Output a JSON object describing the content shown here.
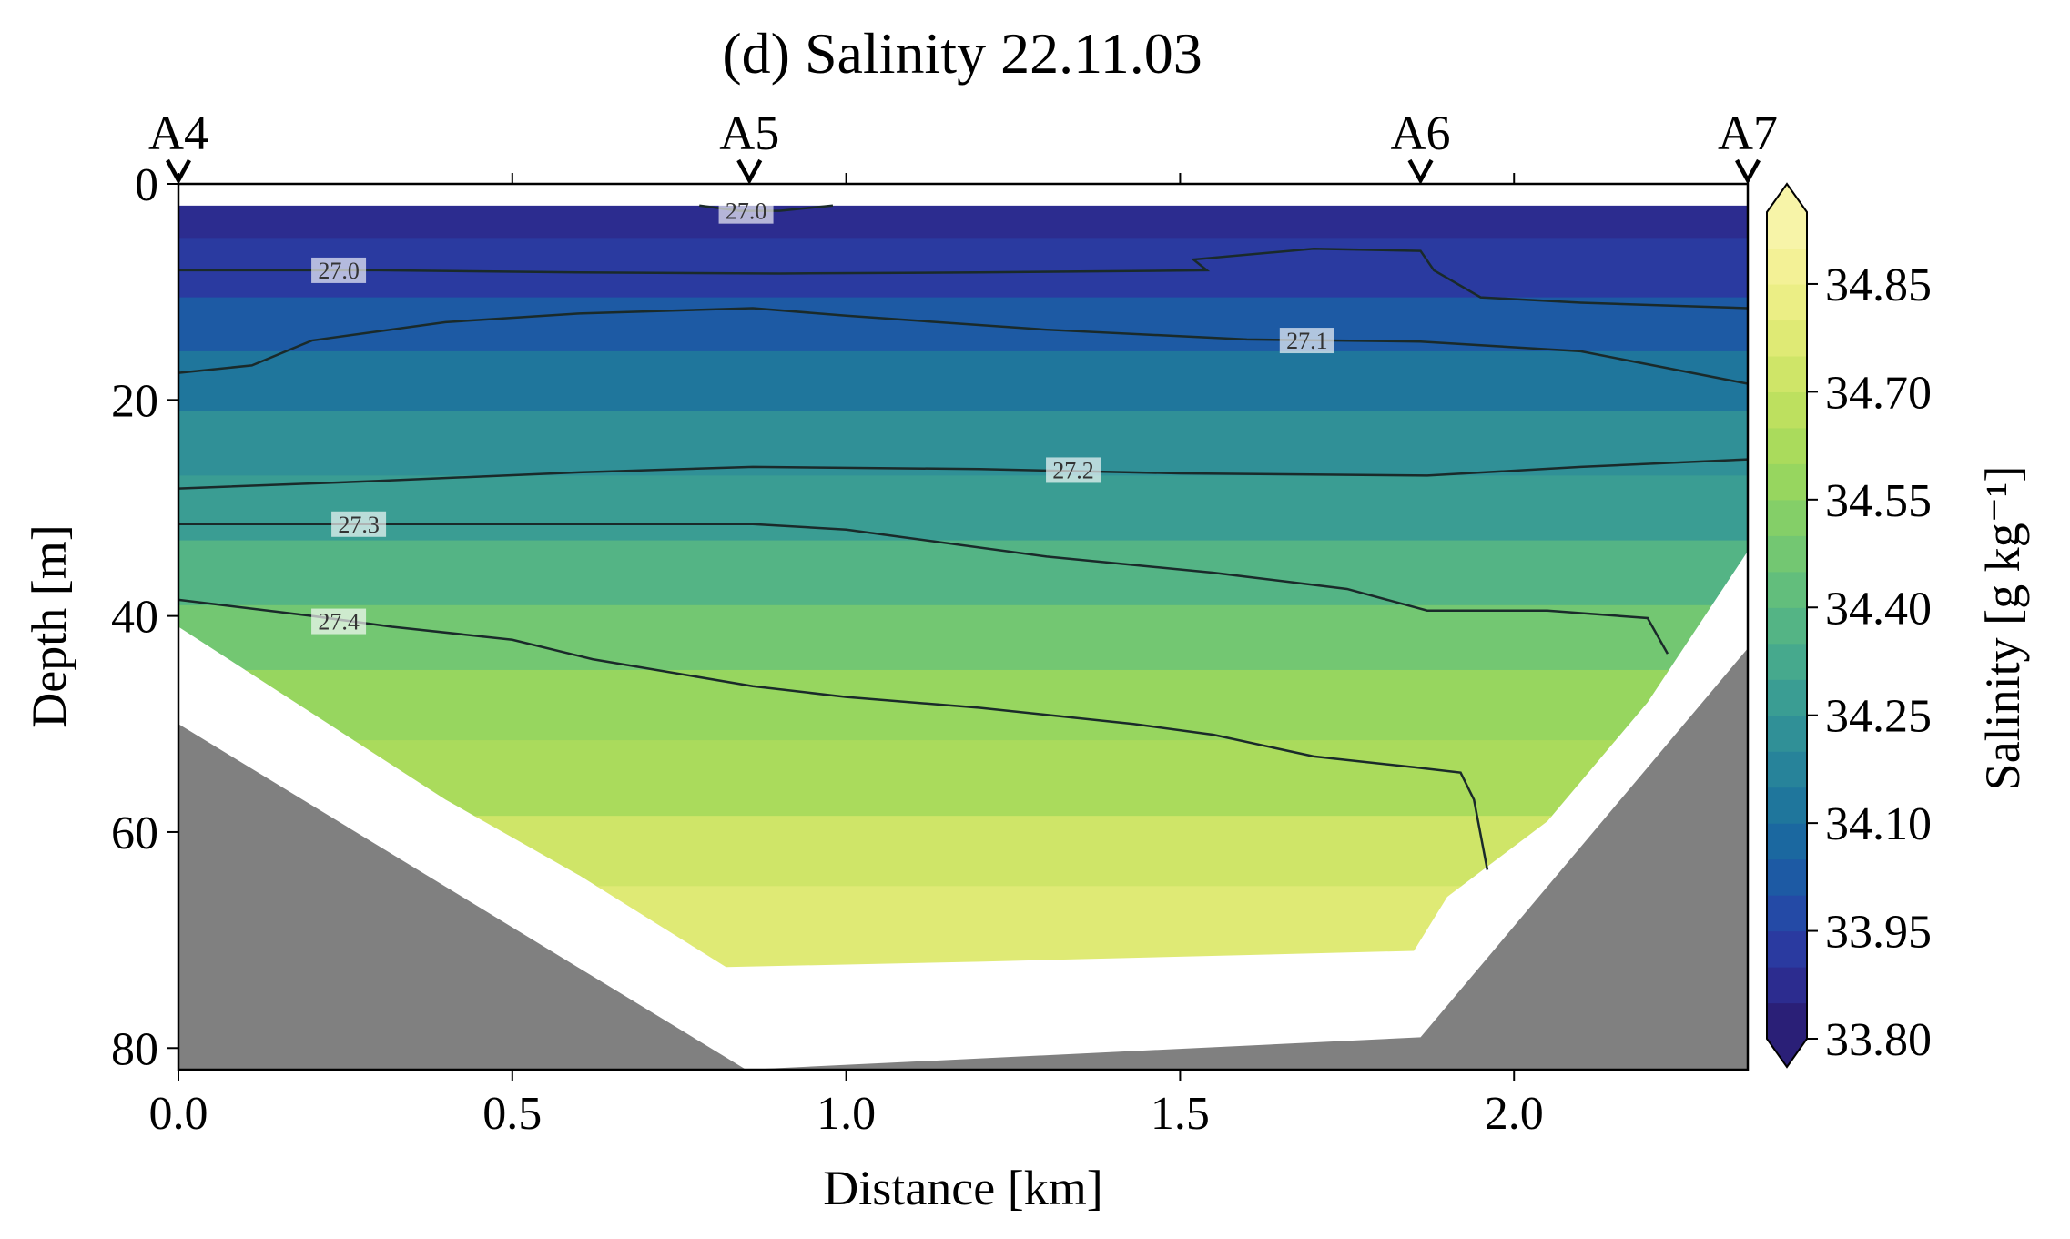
{
  "chart_data": {
    "type": "contour",
    "title": "(d) Salinity 22.11.03",
    "xlabel": "Distance [km]",
    "ylabel": "Depth [m]",
    "xlim": [
      0,
      2.35
    ],
    "ylim": [
      82,
      0
    ],
    "x_ticks": [
      {
        "v": 0.0,
        "label": "0.0"
      },
      {
        "v": 0.5,
        "label": "0.5"
      },
      {
        "v": 1.0,
        "label": "1.0"
      },
      {
        "v": 1.5,
        "label": "1.5"
      },
      {
        "v": 2.0,
        "label": "2.0"
      }
    ],
    "y_ticks": [
      {
        "v": 0,
        "label": "0"
      },
      {
        "v": 20,
        "label": "20"
      },
      {
        "v": 40,
        "label": "40"
      },
      {
        "v": 60,
        "label": "60"
      },
      {
        "v": 80,
        "label": "80"
      }
    ],
    "top_ticks": [
      0.0,
      0.5,
      1.0,
      1.5,
      2.0
    ],
    "stations": [
      {
        "name": "A4",
        "distance": 0.0
      },
      {
        "name": "A5",
        "distance": 0.855
      },
      {
        "name": "A6",
        "distance": 1.86
      },
      {
        "name": "A7",
        "distance": 2.35
      }
    ],
    "data_depth_range": [
      2,
      73
    ],
    "bathymetry": [
      [
        0,
        50
      ],
      [
        0.85,
        82
      ],
      [
        1.86,
        79
      ],
      [
        2.35,
        43
      ]
    ],
    "data_extent": [
      [
        0,
        41
      ],
      [
        0.2,
        49
      ],
      [
        0.4,
        57
      ],
      [
        0.6,
        64
      ],
      [
        0.82,
        72.5
      ],
      [
        1.2,
        72
      ],
      [
        1.85,
        71
      ],
      [
        1.9,
        66
      ],
      [
        2.05,
        59
      ],
      [
        2.2,
        48
      ],
      [
        2.35,
        34
      ]
    ],
    "salinity_profile": [
      {
        "depth": 2,
        "value": 33.85
      },
      {
        "depth": 8,
        "value": 33.92
      },
      {
        "depth": 13,
        "value": 34.02
      },
      {
        "depth": 18,
        "value": 34.12
      },
      {
        "depth": 24,
        "value": 34.2
      },
      {
        "depth": 30,
        "value": 34.3
      },
      {
        "depth": 36,
        "value": 34.4
      },
      {
        "depth": 42,
        "value": 34.5
      },
      {
        "depth": 48,
        "value": 34.58
      },
      {
        "depth": 55,
        "value": 34.65
      },
      {
        "depth": 62,
        "value": 34.72
      },
      {
        "depth": 68,
        "value": 34.76
      },
      {
        "depth": 73,
        "value": 34.78
      }
    ],
    "density_contours": [
      {
        "label": "27.0",
        "label_at": [
          0.85,
          2.5
        ],
        "points": [
          [
            0.78,
            2
          ],
          [
            0.84,
            2.5
          ],
          [
            0.9,
            2.5
          ],
          [
            0.98,
            2
          ]
        ]
      },
      {
        "label": "27.0",
        "label_at": [
          0.24,
          8
        ],
        "points": [
          [
            0,
            8
          ],
          [
            0.3,
            8
          ],
          [
            0.6,
            8.2
          ],
          [
            0.9,
            8.3
          ],
          [
            1.2,
            8.2
          ],
          [
            1.54,
            8
          ],
          [
            1.52,
            7
          ],
          [
            1.7,
            6
          ],
          [
            1.86,
            6.2
          ],
          [
            1.88,
            8
          ],
          [
            1.95,
            10.5
          ],
          [
            2.1,
            11
          ],
          [
            2.35,
            11.5
          ]
        ]
      },
      {
        "label": "27.1",
        "label_at": [
          1.69,
          14.5
        ],
        "points": [
          [
            0,
            17.5
          ],
          [
            0.11,
            16.8
          ],
          [
            0.2,
            14.5
          ],
          [
            0.4,
            12.8
          ],
          [
            0.6,
            12
          ],
          [
            0.86,
            11.5
          ],
          [
            1.0,
            12.2
          ],
          [
            1.3,
            13.5
          ],
          [
            1.6,
            14.4
          ],
          [
            1.86,
            14.6
          ],
          [
            2.1,
            15.5
          ],
          [
            2.25,
            17.3
          ],
          [
            2.35,
            18.5
          ]
        ]
      },
      {
        "label": "27.2",
        "label_at": [
          1.34,
          26.5
        ],
        "points": [
          [
            0,
            28.2
          ],
          [
            0.3,
            27.5
          ],
          [
            0.6,
            26.7
          ],
          [
            0.86,
            26.2
          ],
          [
            1.2,
            26.4
          ],
          [
            1.5,
            26.8
          ],
          [
            1.87,
            27
          ],
          [
            2.1,
            26.2
          ],
          [
            2.35,
            25.5
          ]
        ]
      },
      {
        "label": "27.3",
        "label_at": [
          0.27,
          31.5
        ],
        "points": [
          [
            0,
            31.5
          ],
          [
            0.4,
            31.5
          ],
          [
            0.86,
            31.5
          ],
          [
            1.0,
            32
          ],
          [
            1.3,
            34.5
          ],
          [
            1.55,
            36
          ],
          [
            1.75,
            37.5
          ],
          [
            1.87,
            39.5
          ],
          [
            2.05,
            39.5
          ],
          [
            2.2,
            40.2
          ],
          [
            2.23,
            43.5
          ]
        ]
      },
      {
        "label": "27.4",
        "label_at": [
          0.24,
          40.5
        ],
        "points": [
          [
            0,
            38.5
          ],
          [
            0.2,
            40
          ],
          [
            0.32,
            41
          ],
          [
            0.5,
            42.2
          ],
          [
            0.62,
            44
          ],
          [
            0.86,
            46.5
          ],
          [
            1.0,
            47.5
          ],
          [
            1.2,
            48.5
          ],
          [
            1.43,
            50
          ],
          [
            1.55,
            51
          ],
          [
            1.7,
            53
          ],
          [
            1.85,
            54
          ],
          [
            1.92,
            54.5
          ],
          [
            1.94,
            57
          ],
          [
            1.96,
            63.5
          ]
        ]
      }
    ],
    "colorbar": {
      "label": "Salinity [g kg⁻¹]",
      "min": 33.8,
      "max": 34.95,
      "extend": "both",
      "ticks": [
        {
          "v": 33.8,
          "label": "33.80"
        },
        {
          "v": 33.95,
          "label": "33.95"
        },
        {
          "v": 34.1,
          "label": "34.10"
        },
        {
          "v": 34.25,
          "label": "34.25"
        },
        {
          "v": 34.4,
          "label": "34.40"
        },
        {
          "v": 34.55,
          "label": "34.55"
        },
        {
          "v": 34.7,
          "label": "34.70"
        },
        {
          "v": 34.85,
          "label": "34.85"
        }
      ],
      "levels": 23,
      "colors": [
        "#2a1f77",
        "#2c2c8f",
        "#2a3aa0",
        "#244aa6",
        "#1d5aa4",
        "#1b68a0",
        "#1f769c",
        "#27839a",
        "#309097",
        "#3a9d93",
        "#46a98d",
        "#54b485",
        "#62be7c",
        "#73c772",
        "#84cf68",
        "#97d65f",
        "#aadb5c",
        "#bde05f",
        "#cfe568",
        "#dfea75",
        "#ebee85",
        "#f3f196",
        "#f7f4a8"
      ]
    },
    "terrain_color": "#808080",
    "contour_color": "#1a2a2a"
  }
}
